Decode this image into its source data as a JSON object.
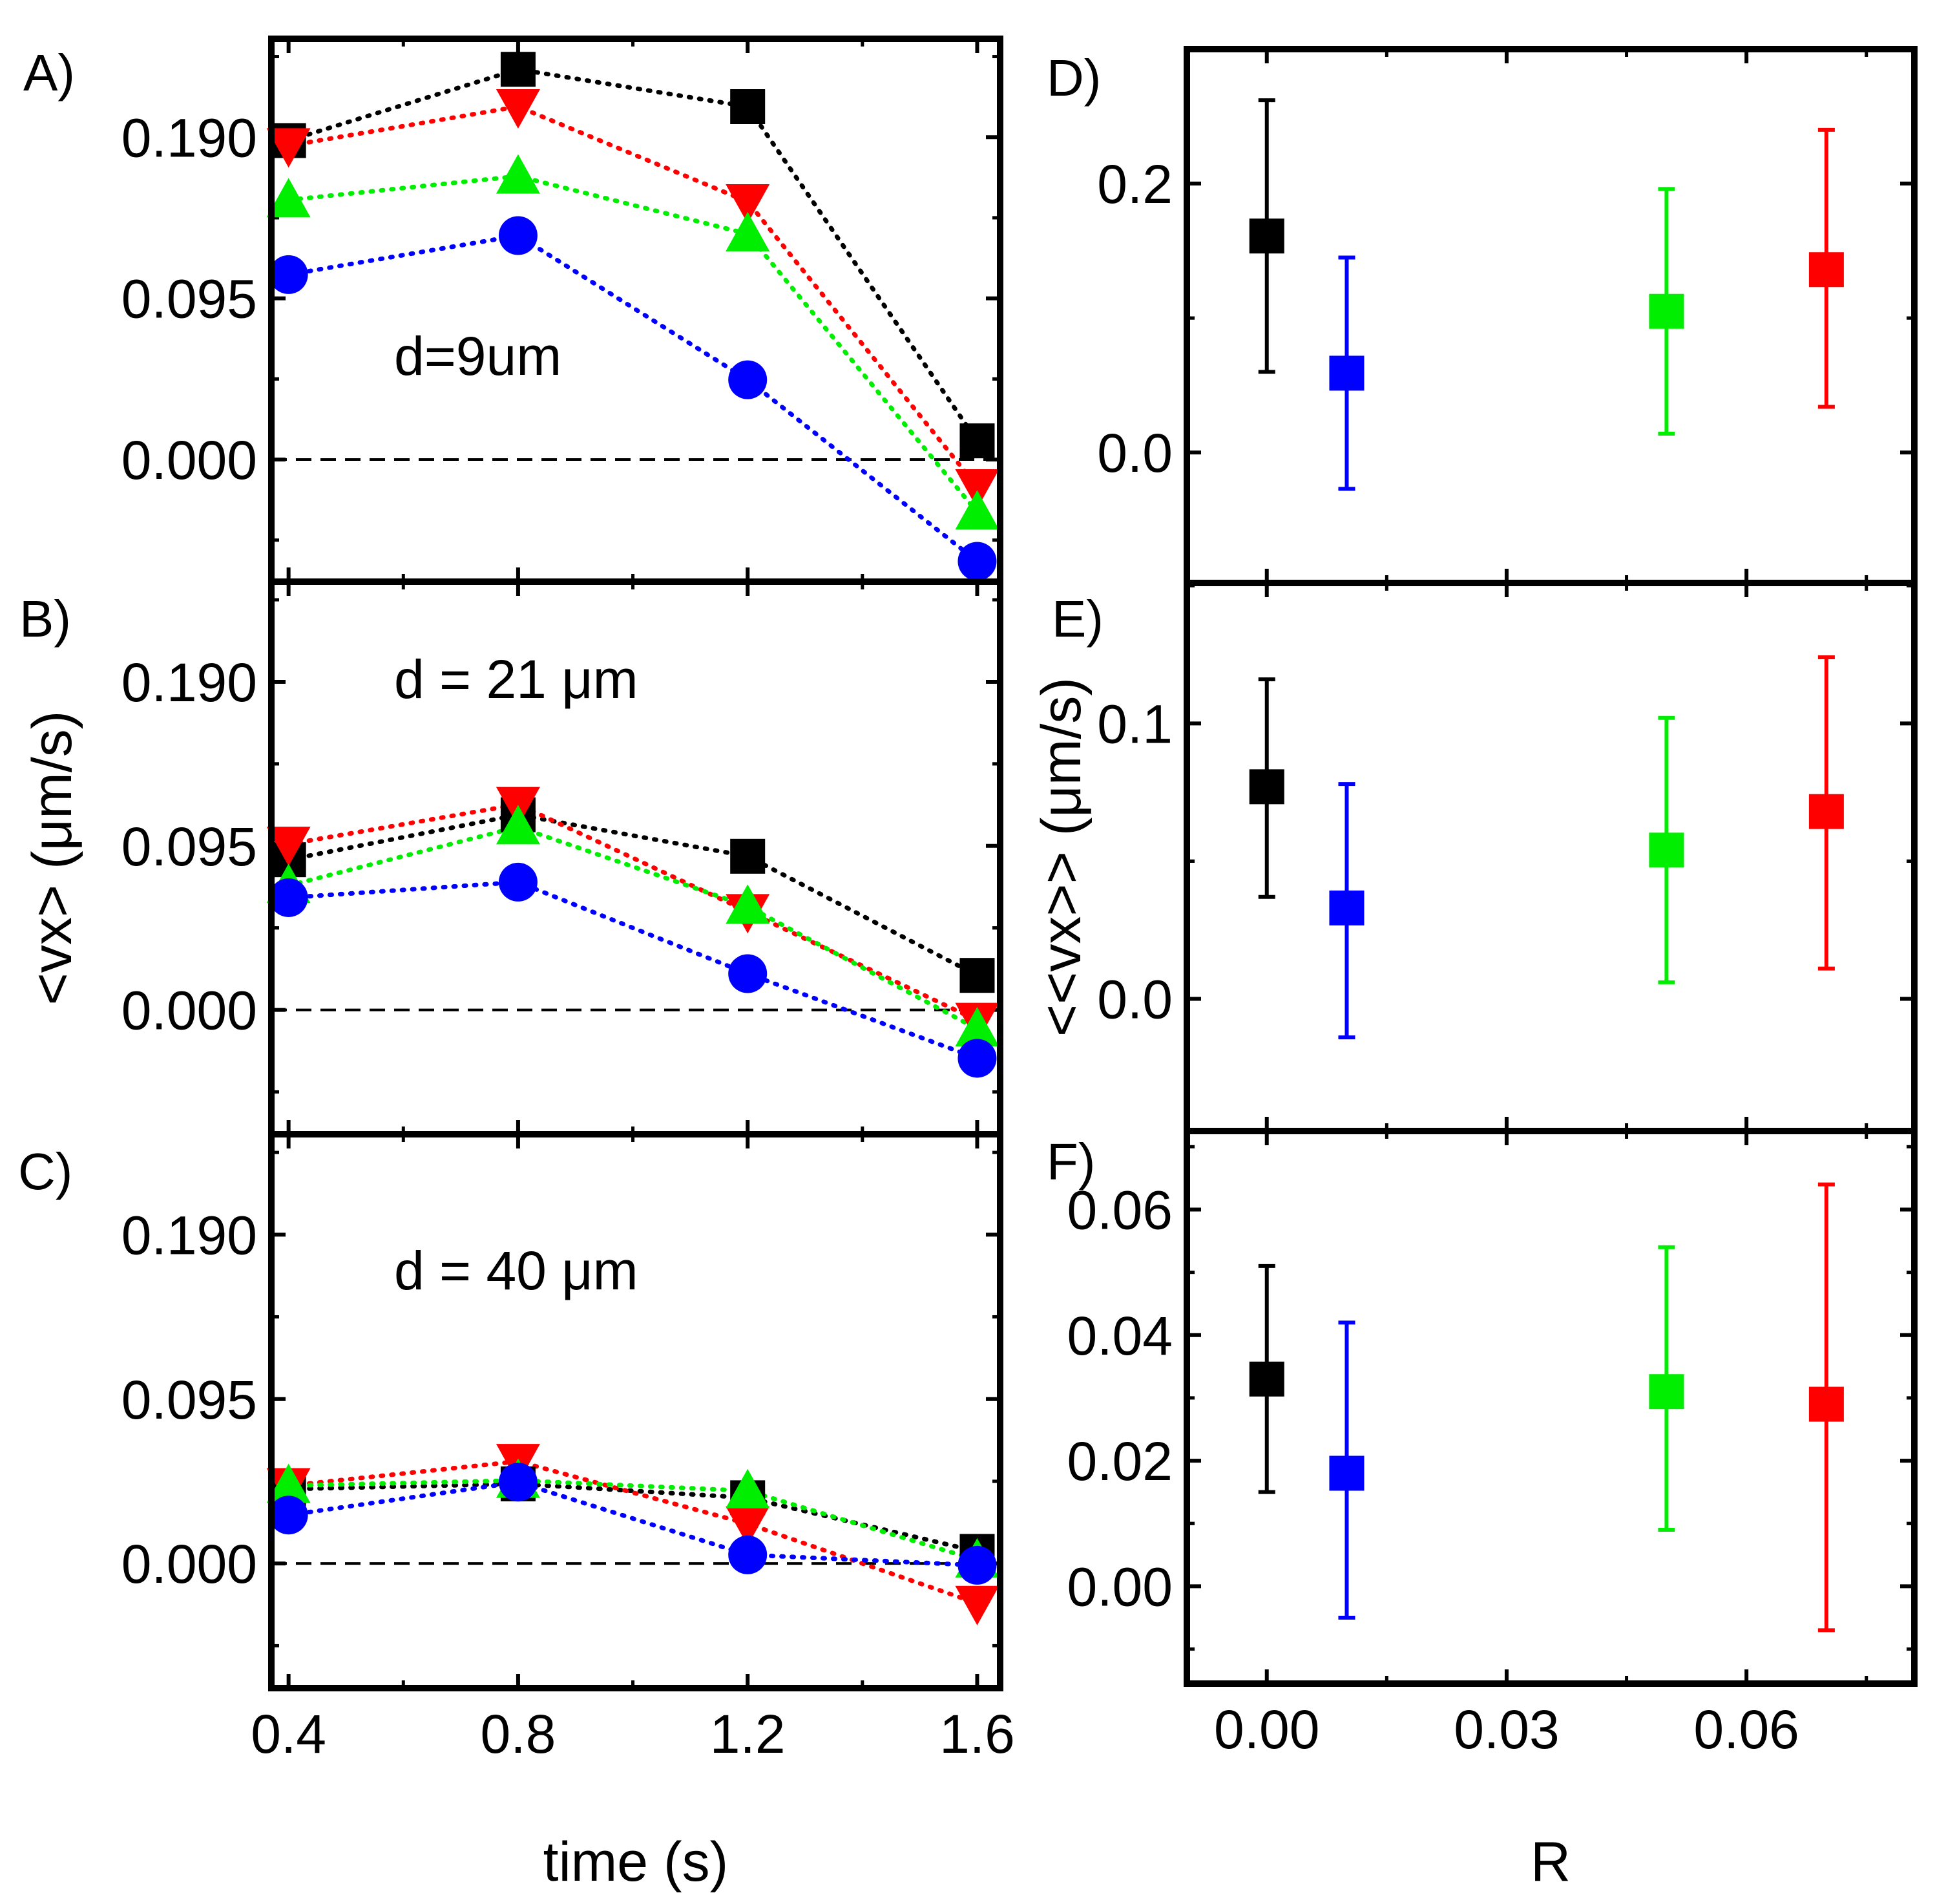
{
  "chart_data": [
    {
      "panel": "A)",
      "type": "line",
      "annotation": "d=9um",
      "xlabel": "",
      "ylabel": "",
      "x": [
        0.4,
        0.8,
        1.2,
        1.6
      ],
      "x_ticks": [
        "0.4",
        "0.8",
        "1.2",
        "1.6"
      ],
      "y_ticks": [
        "0.000",
        "0.095",
        "0.190"
      ],
      "xlim": [
        0.37,
        1.64
      ],
      "ylim": [
        -0.072,
        0.248
      ],
      "zero_line": true,
      "series": [
        {
          "marker": "square",
          "color": "#000000",
          "values": [
            0.188,
            0.23,
            0.208,
            0.011
          ]
        },
        {
          "marker": "triangle-down",
          "color": "#ff0000",
          "values": [
            0.185,
            0.208,
            0.152,
            -0.016
          ]
        },
        {
          "marker": "triangle-up",
          "color": "#00ee00",
          "values": [
            0.153,
            0.167,
            0.133,
            -0.031
          ]
        },
        {
          "marker": "circle",
          "color": "#0000ff",
          "values": [
            0.109,
            0.132,
            0.047,
            -0.06
          ]
        }
      ]
    },
    {
      "panel": "B)",
      "type": "line",
      "annotation": "d = 21 μm",
      "xlabel": "",
      "ylabel": "<vx> (μm/s)",
      "x": [
        0.4,
        0.8,
        1.2,
        1.6
      ],
      "x_ticks": [
        "0.4",
        "0.8",
        "1.2",
        "1.6"
      ],
      "y_ticks": [
        "0.000",
        "0.095",
        "0.190"
      ],
      "xlim": [
        0.37,
        1.64
      ],
      "ylim": [
        -0.072,
        0.248
      ],
      "zero_line": true,
      "series": [
        {
          "marker": "square",
          "color": "#000000",
          "values": [
            0.087,
            0.113,
            0.089,
            0.02
          ]
        },
        {
          "marker": "triangle-down",
          "color": "#ff0000",
          "values": [
            0.096,
            0.119,
            0.057,
            -0.006
          ]
        },
        {
          "marker": "triangle-up",
          "color": "#00ee00",
          "values": [
            0.072,
            0.106,
            0.06,
            -0.011
          ]
        },
        {
          "marker": "circle",
          "color": "#0000ff",
          "values": [
            0.065,
            0.074,
            0.021,
            -0.028
          ]
        }
      ]
    },
    {
      "panel": "C)",
      "type": "line",
      "annotation": "d = 40 μm",
      "xlabel": "time (s)",
      "ylabel": "",
      "x": [
        0.4,
        0.8,
        1.2,
        1.6
      ],
      "x_ticks": [
        "0.4",
        "0.8",
        "1.2",
        "1.6"
      ],
      "y_ticks": [
        "0.000",
        "0.095",
        "0.190"
      ],
      "xlim": [
        0.37,
        1.64
      ],
      "ylim": [
        -0.072,
        0.248
      ],
      "zero_line": true,
      "series": [
        {
          "marker": "square",
          "color": "#000000",
          "values": [
            0.043,
            0.046,
            0.038,
            0.007
          ]
        },
        {
          "marker": "triangle-down",
          "color": "#ff0000",
          "values": [
            0.045,
            0.059,
            0.023,
            -0.023
          ]
        },
        {
          "marker": "triangle-up",
          "color": "#00ee00",
          "values": [
            0.045,
            0.048,
            0.042,
            0.002
          ]
        },
        {
          "marker": "circle",
          "color": "#0000ff",
          "values": [
            0.028,
            0.047,
            0.005,
            -0.001
          ]
        }
      ]
    },
    {
      "panel": "D)",
      "type": "scatter",
      "xlabel": "",
      "ylabel": "",
      "x_ticks": [
        "0.00",
        "0.03",
        "0.06"
      ],
      "y_ticks": [
        "0.0",
        "0.2"
      ],
      "xlim": [
        -0.01,
        0.081
      ],
      "ylim": [
        -0.097,
        0.3
      ],
      "points": [
        {
          "x": 0.0,
          "y": 0.161,
          "err_low": 0.06,
          "err_high": 0.262,
          "color": "#000000"
        },
        {
          "x": 0.01,
          "y": 0.059,
          "err_low": -0.027,
          "err_high": 0.145,
          "color": "#0000ff"
        },
        {
          "x": 0.05,
          "y": 0.105,
          "err_low": 0.014,
          "err_high": 0.196,
          "color": "#00ee00"
        },
        {
          "x": 0.07,
          "y": 0.136,
          "err_low": 0.034,
          "err_high": 0.24,
          "color": "#ff0000"
        }
      ]
    },
    {
      "panel": "E)",
      "type": "scatter",
      "xlabel": "",
      "ylabel": "<<vx>> (μm/s)",
      "x_ticks": [
        "0.00",
        "0.03",
        "0.06"
      ],
      "y_ticks": [
        "0.0",
        "0.1"
      ],
      "xlim": [
        -0.01,
        0.081
      ],
      "ylim": [
        -0.048,
        0.151
      ],
      "points": [
        {
          "x": 0.0,
          "y": 0.077,
          "err_low": 0.037,
          "err_high": 0.116,
          "color": "#000000"
        },
        {
          "x": 0.01,
          "y": 0.033,
          "err_low": -0.014,
          "err_high": 0.078,
          "color": "#0000ff"
        },
        {
          "x": 0.05,
          "y": 0.054,
          "err_low": 0.006,
          "err_high": 0.102,
          "color": "#00ee00"
        },
        {
          "x": 0.07,
          "y": 0.068,
          "err_low": 0.011,
          "err_high": 0.124,
          "color": "#ff0000"
        }
      ]
    },
    {
      "panel": "F)",
      "type": "scatter",
      "xlabel": "R",
      "ylabel": "",
      "x_ticks": [
        "0.00",
        "0.03",
        "0.06"
      ],
      "y_ticks": [
        "0.00",
        "0.02",
        "0.04",
        "0.06"
      ],
      "xlim": [
        -0.01,
        0.081
      ],
      "ylim": [
        -0.0155,
        0.0725
      ],
      "points": [
        {
          "x": 0.0,
          "y": 0.033,
          "err_low": 0.015,
          "err_high": 0.051,
          "color": "#000000"
        },
        {
          "x": 0.01,
          "y": 0.018,
          "err_low": -0.005,
          "err_high": 0.042,
          "color": "#0000ff"
        },
        {
          "x": 0.05,
          "y": 0.031,
          "err_low": 0.009,
          "err_high": 0.054,
          "color": "#00ee00"
        },
        {
          "x": 0.07,
          "y": 0.029,
          "err_low": -0.007,
          "err_high": 0.064,
          "color": "#ff0000"
        }
      ]
    }
  ]
}
